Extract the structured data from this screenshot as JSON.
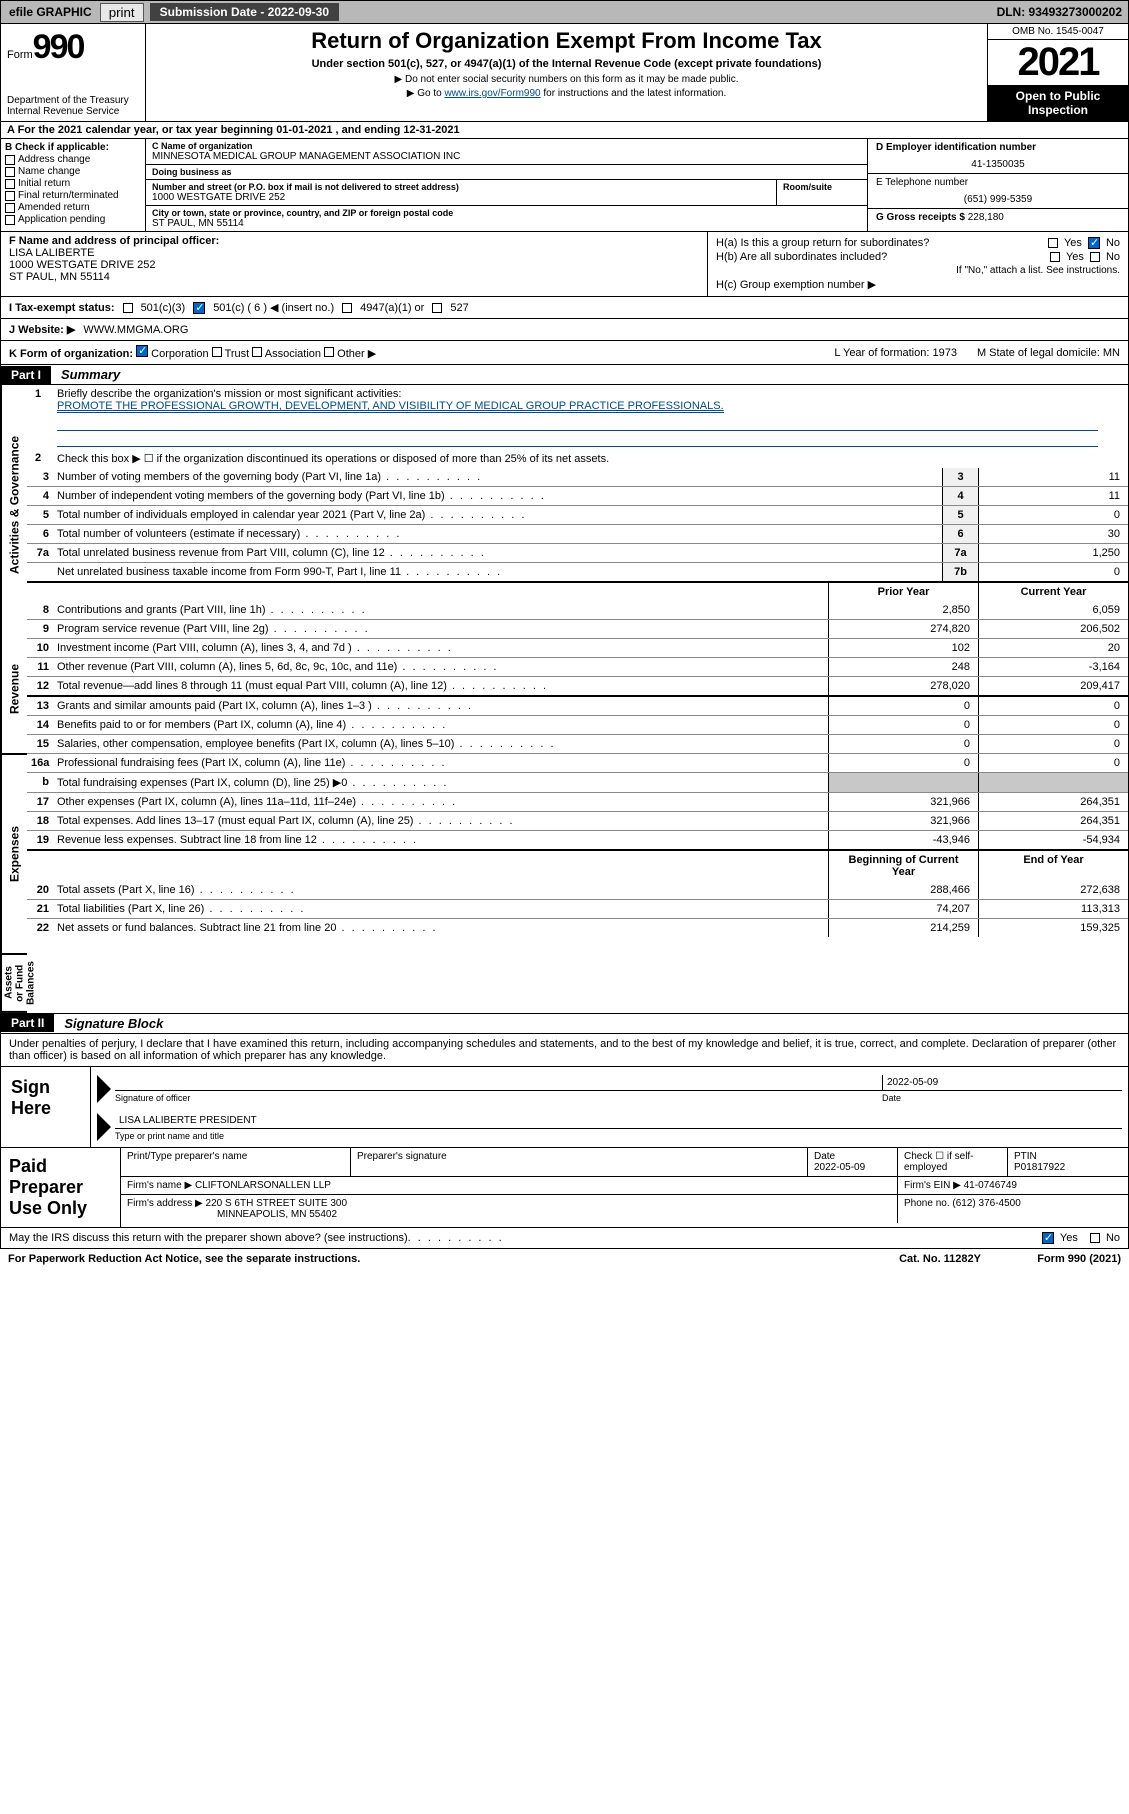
{
  "topbar": {
    "efile": "efile GRAPHIC",
    "print": "print",
    "submission_label": "Submission Date - 2022-09-30",
    "dln": "DLN: 93493273000202"
  },
  "header": {
    "form_word": "Form",
    "form_num": "990",
    "dept": "Department of the Treasury",
    "irs": "Internal Revenue Service",
    "title": "Return of Organization Exempt From Income Tax",
    "sub": "Under section 501(c), 527, or 4947(a)(1) of the Internal Revenue Code (except private foundations)",
    "note1": "▶ Do not enter social security numbers on this form as it may be made public.",
    "note2_pre": "▶ Go to ",
    "note2_link": "www.irs.gov/Form990",
    "note2_post": " for instructions and the latest information.",
    "omb": "OMB No. 1545-0047",
    "year": "2021",
    "open": "Open to Public Inspection"
  },
  "line_a": "A For the 2021 calendar year, or tax year beginning 01-01-2021    , and ending 12-31-2021",
  "box_b": {
    "header": "B Check if applicable:",
    "items": [
      "Address change",
      "Name change",
      "Initial return",
      "Final return/terminated",
      "Amended return",
      "Application pending"
    ]
  },
  "box_c": {
    "name_lbl": "C Name of organization",
    "name": "MINNESOTA MEDICAL GROUP MANAGEMENT ASSOCIATION INC",
    "dba_lbl": "Doing business as",
    "dba": "",
    "street_lbl": "Number and street (or P.O. box if mail is not delivered to street address)",
    "street": "1000 WESTGATE DRIVE 252",
    "room_lbl": "Room/suite",
    "city_lbl": "City or town, state or province, country, and ZIP or foreign postal code",
    "city": "ST PAUL, MN  55114"
  },
  "box_d": {
    "lbl": "D Employer identification number",
    "val": "41-1350035"
  },
  "box_e": {
    "lbl": "E Telephone number",
    "val": "(651) 999-5359"
  },
  "box_g": {
    "lbl": "G Gross receipts $",
    "val": "228,180"
  },
  "box_f": {
    "lbl": "F Name and address of principal officer:",
    "name": "LISA LALIBERTE",
    "addr1": "1000 WESTGATE DRIVE 252",
    "addr2": "ST PAUL, MN  55114"
  },
  "box_h": {
    "ha": "H(a)  Is this a group return for subordinates?",
    "hb": "H(b)  Are all subordinates included?",
    "hb_note": "If \"No,\" attach a list. See instructions.",
    "hc": "H(c)  Group exemption number ▶"
  },
  "row_i": {
    "lbl": "I    Tax-exempt status:",
    "opts": [
      "501(c)(3)",
      "501(c) ( 6 ) ◀ (insert no.)",
      "4947(a)(1) or",
      "527"
    ]
  },
  "row_j": {
    "lbl": "J    Website: ▶",
    "val": "WWW.MMGMA.ORG"
  },
  "row_k": {
    "lbl": "K Form of organization:",
    "opts": [
      "Corporation",
      "Trust",
      "Association",
      "Other ▶"
    ],
    "l": "L Year of formation: 1973",
    "m": "M State of legal domicile: MN"
  },
  "part1": {
    "hdr": "Part I",
    "title": "Summary"
  },
  "governance": {
    "q1_lbl": "Briefly describe the organization's mission or most significant activities:",
    "q1_val": "PROMOTE THE PROFESSIONAL GROWTH, DEVELOPMENT, AND VISIBILITY OF MEDICAL GROUP PRACTICE PROFESSIONALS.",
    "q2": "Check this box ▶ ☐  if the organization discontinued its operations or disposed of more than 25% of its net assets.",
    "rows": [
      {
        "n": "3",
        "desc": "Number of voting members of the governing body (Part VI, line 1a)",
        "box": "3",
        "val": "11"
      },
      {
        "n": "4",
        "desc": "Number of independent voting members of the governing body (Part VI, line 1b)",
        "box": "4",
        "val": "11"
      },
      {
        "n": "5",
        "desc": "Total number of individuals employed in calendar year 2021 (Part V, line 2a)",
        "box": "5",
        "val": "0"
      },
      {
        "n": "6",
        "desc": "Total number of volunteers (estimate if necessary)",
        "box": "6",
        "val": "30"
      },
      {
        "n": "7a",
        "desc": "Total unrelated business revenue from Part VIII, column (C), line 12",
        "box": "7a",
        "val": "1,250"
      },
      {
        "n": "",
        "desc": "Net unrelated business taxable income from Form 990-T, Part I, line 11",
        "box": "7b",
        "val": "0"
      }
    ]
  },
  "two_col_hdr": {
    "prior": "Prior Year",
    "current": "Current Year"
  },
  "revenue": [
    {
      "n": "8",
      "desc": "Contributions and grants (Part VIII, line 1h)",
      "p": "2,850",
      "c": "6,059"
    },
    {
      "n": "9",
      "desc": "Program service revenue (Part VIII, line 2g)",
      "p": "274,820",
      "c": "206,502"
    },
    {
      "n": "10",
      "desc": "Investment income (Part VIII, column (A), lines 3, 4, and 7d )",
      "p": "102",
      "c": "20"
    },
    {
      "n": "11",
      "desc": "Other revenue (Part VIII, column (A), lines 5, 6d, 8c, 9c, 10c, and 11e)",
      "p": "248",
      "c": "-3,164"
    },
    {
      "n": "12",
      "desc": "Total revenue—add lines 8 through 11 (must equal Part VIII, column (A), line 12)",
      "p": "278,020",
      "c": "209,417"
    }
  ],
  "expenses": [
    {
      "n": "13",
      "desc": "Grants and similar amounts paid (Part IX, column (A), lines 1–3 )",
      "p": "0",
      "c": "0"
    },
    {
      "n": "14",
      "desc": "Benefits paid to or for members (Part IX, column (A), line 4)",
      "p": "0",
      "c": "0"
    },
    {
      "n": "15",
      "desc": "Salaries, other compensation, employee benefits (Part IX, column (A), lines 5–10)",
      "p": "0",
      "c": "0"
    },
    {
      "n": "16a",
      "desc": "Professional fundraising fees (Part IX, column (A), line 11e)",
      "p": "0",
      "c": "0"
    },
    {
      "n": "b",
      "desc": "Total fundraising expenses (Part IX, column (D), line 25) ▶0",
      "p": "",
      "c": "",
      "grey": true
    },
    {
      "n": "17",
      "desc": "Other expenses (Part IX, column (A), lines 11a–11d, 11f–24e)",
      "p": "321,966",
      "c": "264,351"
    },
    {
      "n": "18",
      "desc": "Total expenses. Add lines 13–17 (must equal Part IX, column (A), line 25)",
      "p": "321,966",
      "c": "264,351"
    },
    {
      "n": "19",
      "desc": "Revenue less expenses. Subtract line 18 from line 12",
      "p": "-43,946",
      "c": "-54,934"
    }
  ],
  "netassets_hdr": {
    "begin": "Beginning of Current Year",
    "end": "End of Year"
  },
  "netassets": [
    {
      "n": "20",
      "desc": "Total assets (Part X, line 16)",
      "p": "288,466",
      "c": "272,638"
    },
    {
      "n": "21",
      "desc": "Total liabilities (Part X, line 26)",
      "p": "74,207",
      "c": "113,313"
    },
    {
      "n": "22",
      "desc": "Net assets or fund balances. Subtract line 21 from line 20",
      "p": "214,259",
      "c": "159,325"
    }
  ],
  "part2": {
    "hdr": "Part II",
    "title": "Signature Block"
  },
  "sig": {
    "intro": "Under penalties of perjury, I declare that I have examined this return, including accompanying schedules and statements, and to the best of my knowledge and belief, it is true, correct, and complete. Declaration of preparer (other than officer) is based on all information of which preparer has any knowledge.",
    "here": "Sign Here",
    "sig_of_officer": "Signature of officer",
    "date_lbl": "Date",
    "date": "2022-05-09",
    "name": "LISA LALIBERTE  PRESIDENT",
    "name_lbl": "Type or print name and title"
  },
  "paid": {
    "title": "Paid Preparer Use Only",
    "hdr": [
      "Print/Type preparer's name",
      "Preparer's signature",
      "Date",
      "",
      "PTIN"
    ],
    "date": "2022-05-09",
    "check_lbl": "Check ☐ if self-employed",
    "ptin": "P01817922",
    "firm_name_lbl": "Firm's name    ▶",
    "firm_name": "CLIFTONLARSONALLEN LLP",
    "firm_ein_lbl": "Firm's EIN ▶",
    "firm_ein": "41-0746749",
    "firm_addr_lbl": "Firm's address ▶",
    "firm_addr1": "220 S 6TH STREET SUITE 300",
    "firm_addr2": "MINNEAPOLIS, MN  55402",
    "phone_lbl": "Phone no.",
    "phone": "(612) 376-4500"
  },
  "footer": {
    "discuss": "May the IRS discuss this return with the preparer shown above? (see instructions)",
    "paperwork": "For Paperwork Reduction Act Notice, see the separate instructions.",
    "cat": "Cat. No. 11282Y",
    "form": "Form 990 (2021)"
  }
}
